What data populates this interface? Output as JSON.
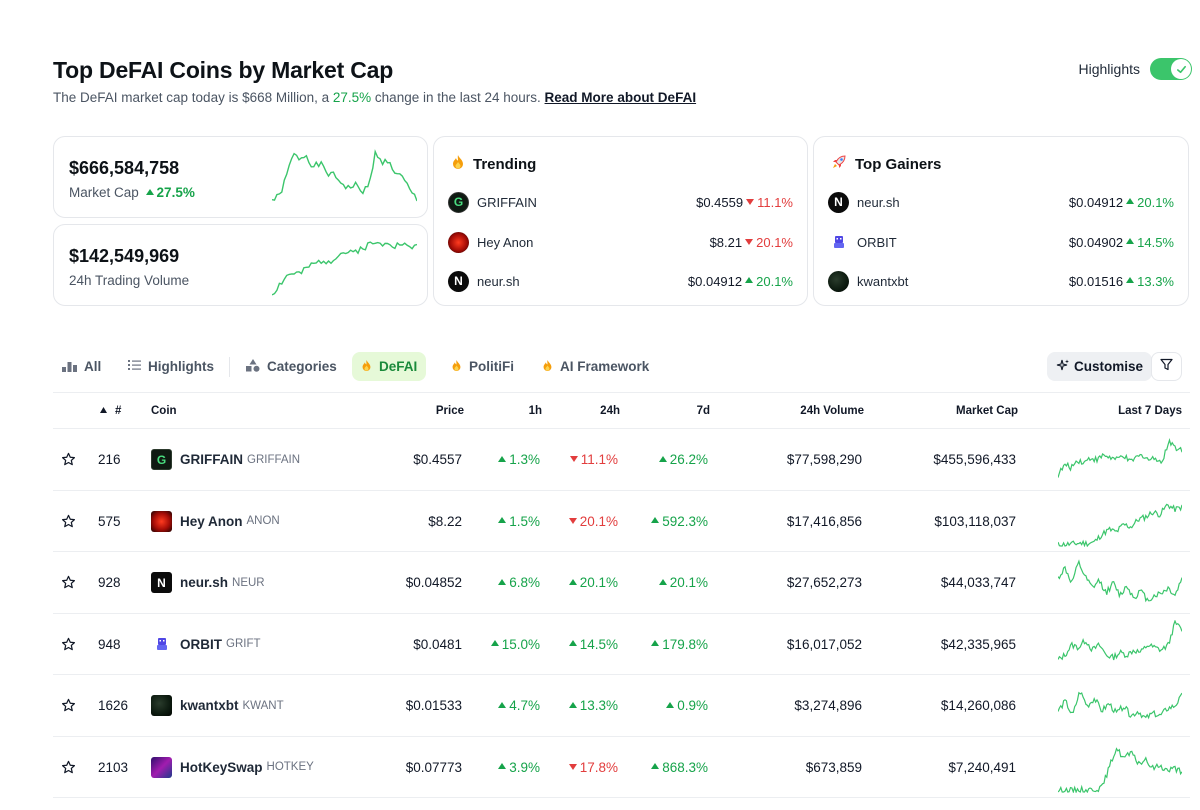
{
  "header": {
    "title": "Top DeFAI Coins by Market Cap",
    "subtitle_pre": "The DeFAI market cap today is $668 Million, a ",
    "subtitle_change": "27.5%",
    "subtitle_post": " change in the last 24 hours. ",
    "read_more": "Read More about DeFAI",
    "highlights_label": "Highlights",
    "highlights_on": true
  },
  "stats": {
    "market_cap": {
      "value": "$666,584,758",
      "label": "Market Cap",
      "change": "27.5%"
    },
    "volume": {
      "value": "$142,549,969",
      "label": "24h Trading Volume"
    }
  },
  "trending": {
    "title": "Trending",
    "icon": "fire-icon",
    "items": [
      {
        "name": "GRIFFAIN",
        "price": "$0.4559",
        "change": "11.1%",
        "dir": "down"
      },
      {
        "name": "Hey Anon",
        "price": "$8.21",
        "change": "20.1%",
        "dir": "down"
      },
      {
        "name": "neur.sh",
        "price": "$0.04912",
        "change": "20.1%",
        "dir": "up"
      }
    ]
  },
  "gainers": {
    "title": "Top Gainers",
    "icon": "rocket-icon",
    "items": [
      {
        "name": "neur.sh",
        "price": "$0.04912",
        "change": "20.1%",
        "dir": "up"
      },
      {
        "name": "ORBIT",
        "price": "$0.04902",
        "change": "14.5%",
        "dir": "up"
      },
      {
        "name": "kwantxbt",
        "price": "$0.01516",
        "change": "13.3%",
        "dir": "up"
      }
    ]
  },
  "tabs": [
    {
      "label": "All",
      "icon": "chart-bars-icon"
    },
    {
      "label": "Highlights",
      "icon": "list-icon"
    },
    {
      "label": "Categories",
      "icon": "shapes-icon"
    },
    {
      "label": "DeFAI",
      "icon": "fire-icon",
      "active": true
    },
    {
      "label": "PolitiFi",
      "icon": "fire-icon"
    },
    {
      "label": "AI Framework",
      "icon": "fire-icon"
    }
  ],
  "customise_label": "Customise",
  "table": {
    "headers": {
      "rank": "#",
      "coin": "Coin",
      "price": "Price",
      "h1": "1h",
      "h24": "24h",
      "d7": "7d",
      "vol": "24h Volume",
      "mcap": "Market Cap",
      "last7": "Last 7 Days"
    },
    "rows": [
      {
        "rank": "216",
        "name": "GRIFFAIN",
        "symbol": "GRIFFAIN",
        "price": "$0.4557",
        "h1": "1.3%",
        "h1_dir": "up",
        "h24": "11.1%",
        "h24_dir": "down",
        "d7": "26.2%",
        "d7_dir": "up",
        "vol": "$77,598,290",
        "mcap": "$455,596,433"
      },
      {
        "rank": "575",
        "name": "Hey Anon",
        "symbol": "ANON",
        "price": "$8.22",
        "h1": "1.5%",
        "h1_dir": "up",
        "h24": "20.1%",
        "h24_dir": "down",
        "d7": "592.3%",
        "d7_dir": "up",
        "vol": "$17,416,856",
        "mcap": "$103,118,037"
      },
      {
        "rank": "928",
        "name": "neur.sh",
        "symbol": "NEUR",
        "price": "$0.04852",
        "h1": "6.8%",
        "h1_dir": "up",
        "h24": "20.1%",
        "h24_dir": "up",
        "d7": "20.1%",
        "d7_dir": "up",
        "vol": "$27,652,273",
        "mcap": "$44,033,747"
      },
      {
        "rank": "948",
        "name": "ORBIT",
        "symbol": "GRIFT",
        "price": "$0.0481",
        "h1": "15.0%",
        "h1_dir": "up",
        "h24": "14.5%",
        "h24_dir": "up",
        "d7": "179.8%",
        "d7_dir": "up",
        "vol": "$16,017,052",
        "mcap": "$42,335,965"
      },
      {
        "rank": "1626",
        "name": "kwantxbt",
        "symbol": "KWANT",
        "price": "$0.01533",
        "h1": "4.7%",
        "h1_dir": "up",
        "h24": "13.3%",
        "h24_dir": "up",
        "d7": "0.9%",
        "d7_dir": "up",
        "vol": "$3,274,896",
        "mcap": "$14,260,086"
      },
      {
        "rank": "2103",
        "name": "HotKeySwap",
        "symbol": "HOTKEY",
        "price": "$0.07773",
        "h1": "3.9%",
        "h1_dir": "up",
        "h24": "17.8%",
        "h24_dir": "down",
        "d7": "868.3%",
        "d7_dir": "up",
        "vol": "$673,859",
        "mcap": "$7,240,491"
      }
    ]
  },
  "colors": {
    "up": "#16a34a",
    "down": "#e23d3d",
    "spark": "#3bc56b",
    "accent": "#3bc56b"
  }
}
